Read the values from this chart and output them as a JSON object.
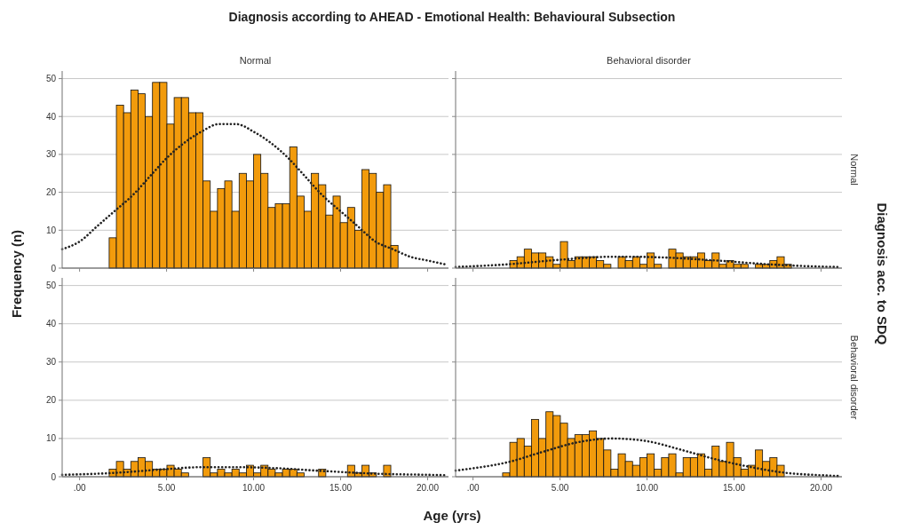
{
  "chart_data": [
    {
      "type": "histogram",
      "title": "Diagnosis according to AHEAD - Emotional Health: Behavioural Subsection",
      "subtitle": "Normal",
      "ylabel": "Frequency (n)",
      "bins": [
        1.7,
        2.115,
        2.53,
        2.945,
        3.36,
        3.775,
        4.19,
        4.605,
        5.02,
        5.435,
        5.85,
        6.265,
        6.68,
        7.095,
        7.51,
        7.925,
        8.34,
        8.755,
        9.17,
        9.585,
        10,
        10.415,
        10.83,
        11.245,
        11.66,
        12.075,
        12.49,
        12.905,
        13.32,
        13.735,
        14.15,
        14.565,
        14.98,
        15.395,
        15.81,
        16.225,
        16.64,
        17.055,
        17.47,
        17.885,
        18.3
      ],
      "xlim": [
        -1,
        21.2
      ],
      "ylim": [
        0,
        52
      ],
      "xticks": [
        {
          "value": 0,
          "label": null
        },
        {
          "value": 5,
          "label": null
        },
        {
          "value": 10,
          "label": null
        },
        {
          "value": 15,
          "label": null
        },
        {
          "value": 20,
          "label": null
        }
      ],
      "yticks": [
        0,
        10,
        20,
        30,
        40,
        50
      ],
      "grid": "y",
      "tick_labels": "y",
      "series": [
        {
          "type": "histogram",
          "color": "#f29b0c",
          "values": [
            8,
            43,
            41,
            47,
            46,
            40,
            49,
            49,
            38,
            45,
            45,
            41,
            41,
            23,
            15,
            21,
            23,
            15,
            25,
            23,
            30,
            25,
            16,
            17,
            17,
            32,
            19,
            15,
            25,
            22,
            14,
            19,
            12,
            16,
            10,
            26,
            25,
            20,
            22,
            6
          ]
        },
        {
          "type": "line",
          "color": "#222222",
          "line_style": "dotted",
          "x": [
            -1,
            0,
            1,
            2,
            3,
            4,
            5,
            6,
            7,
            8,
            8.5,
            9,
            10,
            11,
            12,
            13,
            14,
            15,
            16,
            17,
            18,
            19,
            20,
            21
          ],
          "values": [
            5,
            7,
            11,
            15,
            19,
            24,
            29,
            33,
            36,
            38,
            38,
            38,
            36,
            33,
            29,
            24,
            19,
            15,
            11,
            7,
            5,
            3,
            2,
            1
          ]
        }
      ]
    },
    {
      "type": "histogram",
      "subtitle": "Behavioral disorder",
      "y2label": "Normal",
      "annotations": [
        "Diagnosis acc. to SDQ"
      ],
      "bins": [
        1.7,
        2.115,
        2.53,
        2.945,
        3.36,
        3.775,
        4.19,
        4.605,
        5.02,
        5.435,
        5.85,
        6.265,
        6.68,
        7.095,
        7.51,
        7.925,
        8.34,
        8.755,
        9.17,
        9.585,
        10,
        10.415,
        10.83,
        11.245,
        11.66,
        12.075,
        12.49,
        12.905,
        13.32,
        13.735,
        14.15,
        14.565,
        14.98,
        15.395,
        15.81,
        16.225,
        16.64,
        17.055,
        17.47,
        17.885,
        18.3
      ],
      "xlim": [
        -1,
        21.2
      ],
      "ylim": [
        0,
        52
      ],
      "xticks": [
        {
          "value": 0,
          "label": null
        },
        {
          "value": 5,
          "label": null
        },
        {
          "value": 10,
          "label": null
        },
        {
          "value": 15,
          "label": null
        },
        {
          "value": 20,
          "label": null
        }
      ],
      "yticks": [
        0,
        10,
        20,
        30,
        40,
        50
      ],
      "grid": "y",
      "tick_labels": false,
      "series": [
        {
          "type": "histogram",
          "color": "#f29b0c",
          "values": [
            0,
            2,
            3,
            5,
            4,
            4,
            3,
            1,
            7,
            2,
            3,
            3,
            3,
            2,
            1,
            0,
            3,
            2,
            3,
            1,
            4,
            1,
            0,
            5,
            4,
            3,
            3,
            4,
            2,
            4,
            1,
            2,
            1,
            1,
            0,
            1,
            1,
            2,
            3,
            1
          ]
        },
        {
          "type": "line",
          "color": "#222222",
          "line_style": "dotted",
          "x": [
            -1,
            2,
            5,
            8,
            9,
            11,
            14,
            17,
            20,
            21
          ],
          "values": [
            0.3,
            1,
            2.2,
            3,
            3,
            2.8,
            2,
            1,
            0.4,
            0.3
          ]
        }
      ]
    },
    {
      "type": "histogram",
      "xlabel": "Age (yrs)",
      "bins": [
        1.7,
        2.115,
        2.53,
        2.945,
        3.36,
        3.775,
        4.19,
        4.605,
        5.02,
        5.435,
        5.85,
        6.265,
        6.68,
        7.095,
        7.51,
        7.925,
        8.34,
        8.755,
        9.17,
        9.585,
        10,
        10.415,
        10.83,
        11.245,
        11.66,
        12.075,
        12.49,
        12.905,
        13.32,
        13.735,
        14.15,
        14.565,
        14.98,
        15.395,
        15.81,
        16.225,
        16.64,
        17.055,
        17.47,
        17.885,
        18.3
      ],
      "xlim": [
        -1,
        21.2
      ],
      "ylim": [
        0,
        52
      ],
      "xticks": [
        {
          "value": 0,
          "label": ".00"
        },
        {
          "value": 5,
          "label": "5.00"
        },
        {
          "value": 10,
          "label": "10.00"
        },
        {
          "value": 15,
          "label": "15.00"
        },
        {
          "value": 20,
          "label": "20.00"
        }
      ],
      "yticks": [
        0,
        10,
        20,
        30,
        40,
        50
      ],
      "grid": "y",
      "series": [
        {
          "type": "histogram",
          "color": "#f29b0c",
          "values": [
            2,
            4,
            2,
            4,
            5,
            4,
            2,
            2,
            3,
            2,
            1,
            0,
            0,
            5,
            1,
            2,
            1,
            2,
            1,
            3,
            1,
            3,
            2,
            1,
            2,
            2,
            1,
            0,
            0,
            2,
            0,
            0,
            0,
            3,
            1,
            3,
            1,
            0,
            3,
            0
          ]
        },
        {
          "type": "line",
          "color": "#222222",
          "line_style": "dotted",
          "x": [
            -1,
            2,
            5,
            7,
            9,
            11,
            14,
            17,
            20,
            21
          ],
          "values": [
            0.5,
            1,
            2,
            2.5,
            2.5,
            2.3,
            1.5,
            0.8,
            0.5,
            0.4
          ]
        }
      ]
    },
    {
      "type": "histogram",
      "y2label": "Behavioral disorder",
      "bins": [
        1.7,
        2.115,
        2.53,
        2.945,
        3.36,
        3.775,
        4.19,
        4.605,
        5.02,
        5.435,
        5.85,
        6.265,
        6.68,
        7.095,
        7.51,
        7.925,
        8.34,
        8.755,
        9.17,
        9.585,
        10,
        10.415,
        10.83,
        11.245,
        11.66,
        12.075,
        12.49,
        12.905,
        13.32,
        13.735,
        14.15,
        14.565,
        14.98,
        15.395,
        15.81,
        16.225,
        16.64,
        17.055,
        17.47,
        17.885,
        18.3
      ],
      "xlim": [
        -1,
        21.2
      ],
      "ylim": [
        0,
        52
      ],
      "xticks": [
        {
          "value": 0,
          "label": ".00"
        },
        {
          "value": 5,
          "label": "5.00"
        },
        {
          "value": 10,
          "label": "10.00"
        },
        {
          "value": 15,
          "label": "15.00"
        },
        {
          "value": 20,
          "label": "20.00"
        }
      ],
      "yticks": [
        0,
        10,
        20,
        30,
        40,
        50
      ],
      "grid": "y",
      "tick_labels": "x",
      "series": [
        {
          "type": "histogram",
          "color": "#f29b0c",
          "values": [
            1,
            9,
            10,
            8,
            15,
            10,
            17,
            16,
            14,
            10,
            11,
            11,
            12,
            10,
            7,
            2,
            6,
            4,
            3,
            5,
            6,
            2,
            5,
            6,
            1,
            5,
            5,
            6,
            2,
            8,
            4,
            9,
            5,
            2,
            3,
            7,
            4,
            5,
            3,
            0
          ]
        },
        {
          "type": "line",
          "color": "#222222",
          "line_style": "dotted",
          "x": [
            -1,
            0,
            2,
            4,
            6,
            8,
            10,
            12,
            14,
            16,
            18,
            20,
            21
          ],
          "values": [
            1.6,
            2.2,
            3.8,
            6.5,
            9,
            10,
            9.3,
            7,
            4.5,
            2.5,
            1,
            0.4,
            0.2
          ]
        }
      ]
    }
  ]
}
